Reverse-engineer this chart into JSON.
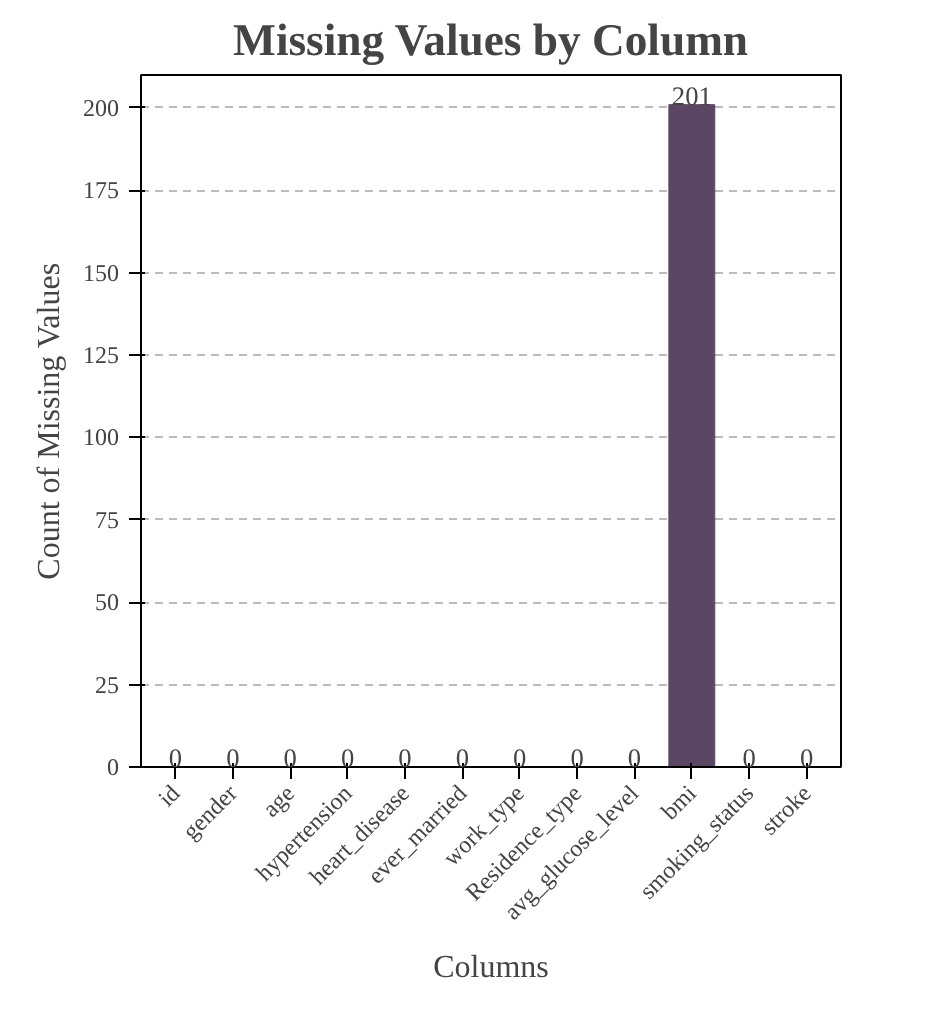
{
  "chart_data": {
    "type": "bar",
    "title": "Missing Values by Column",
    "xlabel": "Columns",
    "ylabel": "Count of Missing Values",
    "categories": [
      "id",
      "gender",
      "age",
      "hypertension",
      "heart_disease",
      "ever_married",
      "work_type",
      "Residence_type",
      "avg_glucose_level",
      "bmi",
      "smoking_status",
      "stroke"
    ],
    "values": [
      0,
      0,
      0,
      0,
      0,
      0,
      0,
      0,
      0,
      201,
      0,
      0
    ],
    "color": "#5b4763",
    "ylim": [
      0,
      210
    ],
    "yticks": [
      0,
      25,
      50,
      75,
      100,
      125,
      150,
      175,
      200
    ],
    "grid": "y",
    "data_labels": true
  }
}
